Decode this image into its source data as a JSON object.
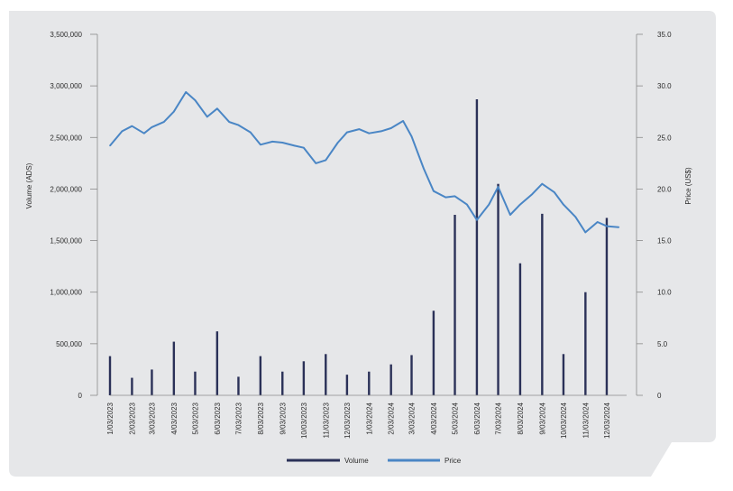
{
  "colors": {
    "panel_background": "#e6e7e9",
    "volume": "#2b3158",
    "price": "#4a86c5",
    "axis": "#8a8a8a"
  },
  "chart_data": {
    "type": "bar",
    "xlabel": "",
    "y_left_label": "Volume (ADS)",
    "y_right_label": "Price (US$)",
    "y_left_ticks": [
      "3,500,000",
      "3,000,000",
      "2,500,000",
      "2,000,000",
      "1,500,000",
      "1,000,000",
      "500,000",
      "0"
    ],
    "y_left_range": [
      0,
      3500000
    ],
    "y_right_ticks": [
      "35.0",
      "30.0",
      "25.0",
      "20.0",
      "15.0",
      "10.0",
      "5.0",
      "0"
    ],
    "y_right_range": [
      0,
      35
    ],
    "x_ticks": [
      "1/03/2023",
      "2/03/2023",
      "3/03/2023",
      "4/03/2023",
      "5/03/2023",
      "6/03/2023",
      "7/03/2023",
      "8/03/2023",
      "9/03/2023",
      "10/03/2023",
      "11/03/2023",
      "12/03/2023",
      "1/03/2024",
      "2/03/2024",
      "3/03/2024",
      "4/03/2024",
      "5/03/2024",
      "6/03/2024",
      "7/03/2024",
      "8/03/2024",
      "9/03/2024",
      "10/03/2024",
      "11/03/2024",
      "12/03/2024"
    ],
    "legend": [
      "Volume",
      "Price"
    ],
    "legend_position": "bottom",
    "series": [
      {
        "name": "Price",
        "type": "line",
        "axis": "right",
        "x": [
          "1/03/2023",
          "1/20/2023",
          "2/03/2023",
          "2/20/2023",
          "3/03/2023",
          "3/20/2023",
          "4/03/2023",
          "4/20/2023",
          "5/03/2023",
          "5/20/2023",
          "6/03/2023",
          "6/20/2023",
          "7/03/2023",
          "7/20/2023",
          "8/03/2023",
          "8/20/2023",
          "9/03/2023",
          "9/20/2023",
          "10/03/2023",
          "10/20/2023",
          "11/03/2023",
          "11/20/2023",
          "12/03/2023",
          "12/20/2023",
          "1/03/2024",
          "1/20/2024",
          "2/03/2024",
          "2/20/2024",
          "3/03/2024",
          "3/20/2024",
          "4/03/2024",
          "4/20/2024",
          "5/03/2024",
          "5/20/2024",
          "6/03/2024",
          "6/20/2024",
          "7/03/2024",
          "7/20/2024",
          "8/03/2024",
          "8/20/2024",
          "9/03/2024",
          "9/20/2024",
          "10/03/2024",
          "10/20/2024",
          "11/03/2024",
          "11/20/2024",
          "12/03/2024",
          "12/20/2024"
        ],
        "values": [
          24.2,
          25.6,
          26.1,
          25.4,
          26.0,
          26.5,
          27.5,
          29.4,
          28.6,
          27.0,
          27.8,
          26.5,
          26.2,
          25.5,
          24.3,
          24.6,
          24.5,
          24.2,
          24.0,
          22.5,
          22.8,
          24.5,
          25.5,
          25.8,
          25.4,
          25.6,
          25.9,
          26.6,
          25.1,
          22.0,
          19.8,
          19.2,
          19.3,
          18.5,
          17.0,
          18.5,
          20.2,
          17.5,
          18.5,
          19.5,
          20.5,
          19.7,
          18.5,
          17.3,
          15.8,
          16.8,
          16.4,
          16.3
        ]
      },
      {
        "name": "Volume",
        "type": "bar",
        "axis": "left",
        "x": [
          "1/03/2023",
          "2/03/2023",
          "3/03/2023",
          "4/03/2023",
          "5/03/2023",
          "6/03/2023",
          "7/03/2023",
          "8/03/2023",
          "9/03/2023",
          "10/03/2023",
          "11/03/2023",
          "12/03/2023",
          "1/03/2024",
          "2/03/2024",
          "3/03/2024",
          "4/03/2024",
          "5/03/2024",
          "6/03/2024",
          "7/03/2024",
          "8/03/2024",
          "9/03/2024",
          "10/03/2024",
          "11/03/2024",
          "12/03/2024"
        ],
        "values": [
          380000,
          170000,
          250000,
          520000,
          230000,
          620000,
          180000,
          380000,
          230000,
          330000,
          400000,
          200000,
          230000,
          300000,
          390000,
          820000,
          1750000,
          2870000,
          2050000,
          1280000,
          1760000,
          400000,
          1000000,
          1720000
        ]
      }
    ]
  }
}
